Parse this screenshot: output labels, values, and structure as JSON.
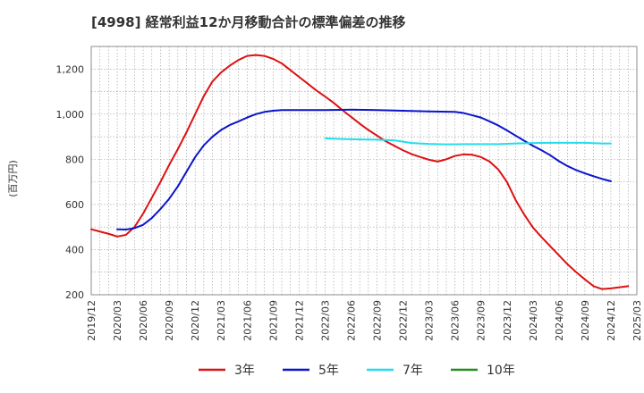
{
  "chart_data": {
    "type": "line",
    "title": "[4998]  経常利益12か月移動合計の標準偏差の推移",
    "ylabel": "(百万円)",
    "xlabel": "",
    "ylim": [
      200,
      1300
    ],
    "yticks": [
      200,
      400,
      600,
      800,
      1000,
      1200
    ],
    "ytick_labels": [
      "200",
      "400",
      "600",
      "800",
      "1,000",
      "1,200"
    ],
    "x_range": [
      "2019/12",
      "2025/03"
    ],
    "xtick_labels": [
      "2019/12",
      "2020/03",
      "2020/06",
      "2020/09",
      "2020/12",
      "2021/03",
      "2021/06",
      "2021/09",
      "2021/12",
      "2022/03",
      "2022/06",
      "2022/09",
      "2022/12",
      "2023/03",
      "2023/06",
      "2023/09",
      "2023/12",
      "2024/03",
      "2024/06",
      "2024/09",
      "2024/12",
      "2025/03"
    ],
    "grid": true,
    "legend_position": "bottom",
    "series": [
      {
        "name": "3年",
        "color": "#dd1111",
        "points": [
          [
            "2019/12",
            490
          ],
          [
            "2020/01",
            480
          ],
          [
            "2020/02",
            470
          ],
          [
            "2020/03",
            458
          ],
          [
            "2020/04",
            465
          ],
          [
            "2020/05",
            500
          ],
          [
            "2020/06",
            560
          ],
          [
            "2020/07",
            630
          ],
          [
            "2020/08",
            700
          ],
          [
            "2020/09",
            775
          ],
          [
            "2020/10",
            845
          ],
          [
            "2020/11",
            920
          ],
          [
            "2020/12",
            1000
          ],
          [
            "2021/01",
            1080
          ],
          [
            "2021/02",
            1145
          ],
          [
            "2021/03",
            1185
          ],
          [
            "2021/04",
            1215
          ],
          [
            "2021/05",
            1240
          ],
          [
            "2021/06",
            1258
          ],
          [
            "2021/07",
            1262
          ],
          [
            "2021/08",
            1258
          ],
          [
            "2021/09",
            1245
          ],
          [
            "2021/10",
            1225
          ],
          [
            "2021/11",
            1195
          ],
          [
            "2021/12",
            1165
          ],
          [
            "2022/01",
            1135
          ],
          [
            "2022/02",
            1105
          ],
          [
            "2022/03",
            1078
          ],
          [
            "2022/04",
            1050
          ],
          [
            "2022/05",
            1018
          ],
          [
            "2022/06",
            988
          ],
          [
            "2022/07",
            958
          ],
          [
            "2022/08",
            930
          ],
          [
            "2022/09",
            905
          ],
          [
            "2022/10",
            880
          ],
          [
            "2022/11",
            860
          ],
          [
            "2022/12",
            840
          ],
          [
            "2023/01",
            823
          ],
          [
            "2023/02",
            810
          ],
          [
            "2023/03",
            798
          ],
          [
            "2023/04",
            790
          ],
          [
            "2023/05",
            800
          ],
          [
            "2023/06",
            815
          ],
          [
            "2023/07",
            822
          ],
          [
            "2023/08",
            820
          ],
          [
            "2023/09",
            810
          ],
          [
            "2023/10",
            790
          ],
          [
            "2023/11",
            755
          ],
          [
            "2023/12",
            700
          ],
          [
            "2024/01",
            620
          ],
          [
            "2024/02",
            555
          ],
          [
            "2024/03",
            498
          ],
          [
            "2024/04",
            455
          ],
          [
            "2024/05",
            415
          ],
          [
            "2024/06",
            375
          ],
          [
            "2024/07",
            335
          ],
          [
            "2024/08",
            300
          ],
          [
            "2024/09",
            268
          ],
          [
            "2024/10",
            238
          ],
          [
            "2024/11",
            225
          ],
          [
            "2024/12",
            228
          ],
          [
            "2025/01",
            233
          ],
          [
            "2025/02",
            238
          ]
        ]
      },
      {
        "name": "5年",
        "color": "#0a14cc",
        "points": [
          [
            "2020/03",
            490
          ],
          [
            "2020/04",
            489
          ],
          [
            "2020/05",
            495
          ],
          [
            "2020/06",
            510
          ],
          [
            "2020/07",
            540
          ],
          [
            "2020/08",
            580
          ],
          [
            "2020/09",
            625
          ],
          [
            "2020/10",
            680
          ],
          [
            "2020/11",
            745
          ],
          [
            "2020/12",
            810
          ],
          [
            "2021/01",
            862
          ],
          [
            "2021/02",
            900
          ],
          [
            "2021/03",
            930
          ],
          [
            "2021/04",
            952
          ],
          [
            "2021/05",
            968
          ],
          [
            "2021/06",
            985
          ],
          [
            "2021/07",
            1000
          ],
          [
            "2021/08",
            1010
          ],
          [
            "2021/09",
            1015
          ],
          [
            "2021/10",
            1018
          ],
          [
            "2021/11",
            1018
          ],
          [
            "2021/12",
            1018
          ],
          [
            "2022/03",
            1018
          ],
          [
            "2022/06",
            1020
          ],
          [
            "2022/09",
            1018
          ],
          [
            "2022/12",
            1015
          ],
          [
            "2023/03",
            1012
          ],
          [
            "2023/06",
            1010
          ],
          [
            "2023/07",
            1005
          ],
          [
            "2023/08",
            995
          ],
          [
            "2023/09",
            985
          ],
          [
            "2023/10",
            968
          ],
          [
            "2023/11",
            950
          ],
          [
            "2023/12",
            928
          ],
          [
            "2024/01",
            905
          ],
          [
            "2024/02",
            882
          ],
          [
            "2024/03",
            860
          ],
          [
            "2024/04",
            840
          ],
          [
            "2024/05",
            818
          ],
          [
            "2024/06",
            792
          ],
          [
            "2024/07",
            770
          ],
          [
            "2024/08",
            752
          ],
          [
            "2024/09",
            738
          ],
          [
            "2024/10",
            725
          ],
          [
            "2024/11",
            713
          ],
          [
            "2024/12",
            703
          ]
        ]
      },
      {
        "name": "7年",
        "color": "#22ddee",
        "points": [
          [
            "2022/03",
            893
          ],
          [
            "2022/05",
            890
          ],
          [
            "2022/07",
            888
          ],
          [
            "2022/09",
            887
          ],
          [
            "2022/11",
            884
          ],
          [
            "2023/01",
            872
          ],
          [
            "2023/03",
            868
          ],
          [
            "2023/05",
            866
          ],
          [
            "2023/07",
            867
          ],
          [
            "2023/09",
            867
          ],
          [
            "2023/11",
            867
          ],
          [
            "2024/01",
            870
          ],
          [
            "2024/03",
            872
          ],
          [
            "2024/05",
            873
          ],
          [
            "2024/07",
            873
          ],
          [
            "2024/09",
            873
          ],
          [
            "2024/11",
            870
          ],
          [
            "2024/12",
            870
          ]
        ]
      },
      {
        "name": "10年",
        "color": "#228b22",
        "points": []
      }
    ]
  }
}
